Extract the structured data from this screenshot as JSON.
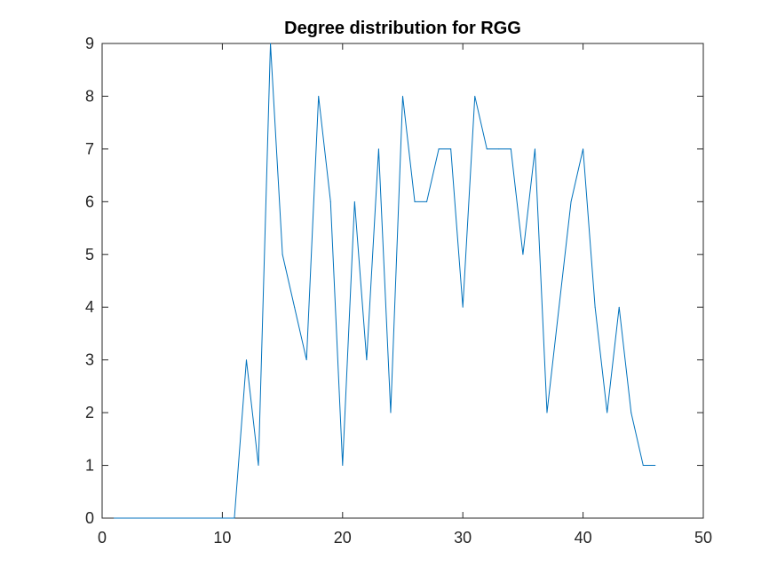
{
  "chart_data": {
    "type": "line",
    "title": "Degree distribution for RGG",
    "xlabel": "",
    "ylabel": "",
    "xlim": [
      0,
      50
    ],
    "ylim": [
      0,
      9
    ],
    "xticks": [
      0,
      10,
      20,
      30,
      40,
      50
    ],
    "yticks": [
      0,
      1,
      2,
      3,
      4,
      5,
      6,
      7,
      8,
      9
    ],
    "grid": false,
    "line_color": "#0072BD",
    "x": [
      1,
      2,
      3,
      4,
      5,
      6,
      7,
      8,
      9,
      10,
      11,
      12,
      13,
      14,
      15,
      16,
      17,
      18,
      19,
      20,
      21,
      22,
      23,
      24,
      25,
      26,
      27,
      28,
      29,
      30,
      31,
      32,
      33,
      34,
      35,
      36,
      37,
      38,
      39,
      40,
      41,
      42,
      43,
      44,
      45,
      46
    ],
    "series": [
      {
        "values": [
          0,
          0,
          0,
          0,
          0,
          0,
          0,
          0,
          0,
          0,
          0,
          3,
          1,
          9,
          5,
          4,
          3,
          8,
          6,
          1,
          6,
          3,
          7,
          2,
          8,
          6,
          6,
          7,
          7,
          4,
          8,
          7,
          7,
          7,
          5,
          7,
          2,
          4,
          6,
          7,
          4,
          2,
          4,
          2,
          1,
          1
        ]
      }
    ]
  }
}
